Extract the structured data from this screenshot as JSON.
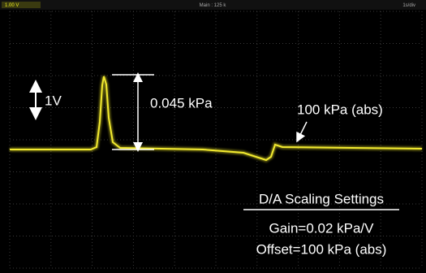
{
  "header": {
    "channel": "1.00 V",
    "timebase": "Main : 125 k",
    "scale": "1s/div"
  },
  "annotations": {
    "volt": "1V",
    "pulse": "0.045 kPa",
    "baseline": "100 kPa (abs)"
  },
  "settings": {
    "title": "D/A Scaling Settings",
    "gain": "Gain=0.02 kPa/V",
    "offset": "Offset=100 kPa (abs)"
  }
}
